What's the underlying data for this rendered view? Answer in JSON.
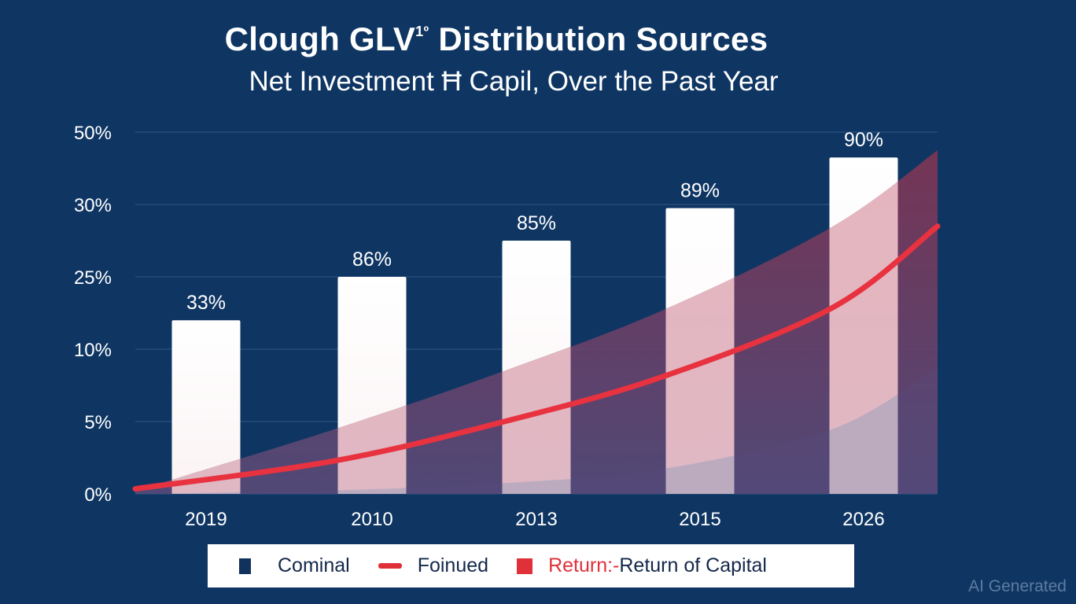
{
  "title": {
    "main": "Clough GLV",
    "superscript": "1º",
    "main_suffix": "Distribution Sources",
    "subtitle": "Net Investment Ħ Capil, Over the Past Year"
  },
  "colors": {
    "background": "#0f3663",
    "bar": "#ffffff",
    "curve": "#e8323f",
    "band_light": "#f6c9cf",
    "band_dark": "#7a3858",
    "gridline": "#2a4f7e",
    "legend_dark": "#12325e",
    "legend_red": "#e0303a"
  },
  "chart_data": {
    "type": "bar",
    "title": "Clough GLV1º Distribution Sources",
    "subtitle": "Net Investment Ħ Capil, Over the Past Year",
    "xlabel": "",
    "ylabel": "",
    "y_axis_scale": "categorical-evenly-spaced",
    "y_ticks": [
      "0%",
      "5%",
      "10%",
      "25%",
      "30%",
      "50%"
    ],
    "grid": true,
    "categories": [
      "2019",
      "2010",
      "2013",
      "2015",
      "2026"
    ],
    "series": [
      {
        "name": "Cominal",
        "kind": "bar",
        "labels": [
          "33%",
          "86%",
          "85%",
          "89%",
          "90%"
        ],
        "values_tick_index": [
          2.4,
          3.0,
          3.5,
          3.95,
          4.65
        ]
      },
      {
        "name": "Foinued",
        "kind": "line",
        "x_position": [
          0,
          0.25,
          0.46,
          0.66,
          0.87,
          1.0
        ],
        "values_tick_index": [
          0.07,
          0.46,
          1.0,
          1.63,
          2.58,
          3.7
        ]
      },
      {
        "name": "Return:- Return of Capital",
        "kind": "band",
        "x_position": [
          0,
          0.25,
          0.46,
          0.66,
          0.87,
          1.0
        ],
        "upper_tick_index": [
          0.04,
          0.9,
          1.7,
          2.55,
          3.7,
          4.75
        ],
        "lower_tick_index": [
          0.0,
          0.05,
          0.15,
          0.35,
          0.9,
          1.75
        ]
      }
    ],
    "legend_position": "bottom-center"
  },
  "legend": {
    "items": [
      {
        "label": "Cominal",
        "swatch": "square",
        "color": "#12325e"
      },
      {
        "label": "Foinued",
        "swatch": "line",
        "color": "#e0303a"
      },
      {
        "label_red": "Return:-",
        "label": " Return of Capital",
        "swatch": "square",
        "color": "#e0303a"
      }
    ]
  },
  "watermark": "AI Generated"
}
